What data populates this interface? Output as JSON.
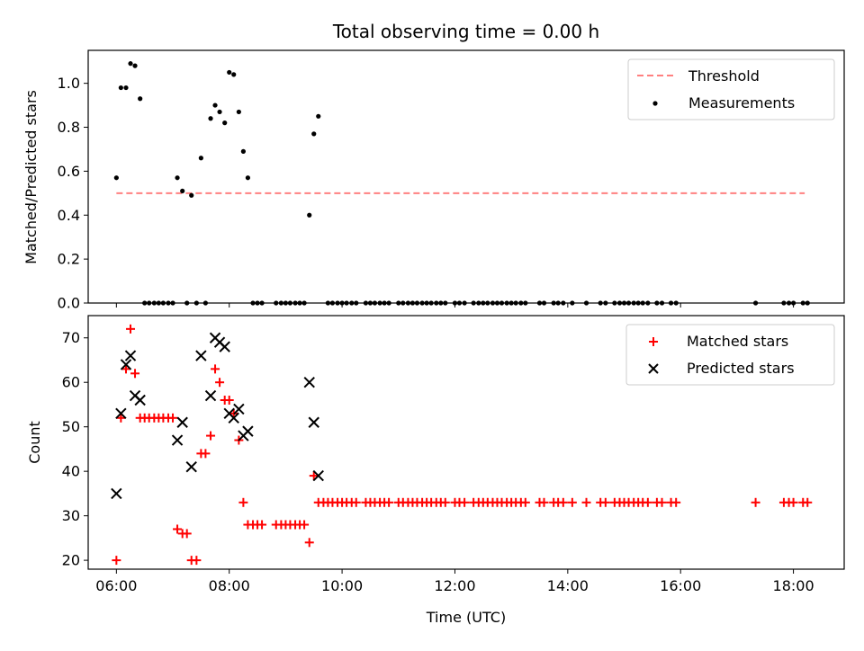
{
  "chart_data": [
    {
      "type": "scatter",
      "title": "Total observing time = 0.00 h",
      "xlabel": "",
      "ylabel": "Matched/Predicted stars",
      "xlim": [
        5.5,
        18.9
      ],
      "ylim": [
        0,
        1.15
      ],
      "yticks": [
        0.0,
        0.2,
        0.4,
        0.6,
        0.8,
        1.0
      ],
      "ytick_labels": [
        "0.0",
        "0.2",
        "0.4",
        "0.6",
        "0.8",
        "1.0"
      ],
      "legend_position": "upper right",
      "threshold": {
        "name": "Threshold",
        "value": 0.5,
        "x_range": [
          6.0,
          18.2
        ],
        "color": "#ff8080",
        "style": "dashed"
      },
      "series": [
        {
          "name": "Measurements",
          "color": "#000000",
          "marker": "dot",
          "x": [
            6.0,
            6.08,
            6.17,
            6.25,
            6.33,
            6.42,
            7.08,
            7.17,
            7.33,
            7.5,
            7.67,
            7.75,
            7.83,
            7.92,
            8.0,
            8.08,
            8.17,
            8.25,
            8.33,
            9.42,
            9.5,
            9.58
          ],
          "y": [
            0.57,
            0.98,
            0.98,
            1.09,
            1.08,
            0.93,
            0.57,
            0.51,
            0.49,
            0.66,
            0.84,
            0.9,
            0.87,
            0.82,
            1.05,
            1.04,
            0.87,
            0.69,
            0.57,
            0.4,
            0.77,
            0.85
          ]
        },
        {
          "name": "",
          "color": "#000000",
          "marker": "dot",
          "x": [
            6.5,
            6.58,
            6.67,
            6.75,
            6.83,
            6.92,
            7.0,
            7.25,
            7.42,
            7.58,
            8.42,
            8.5,
            8.58,
            8.83,
            8.92,
            9.0,
            9.08,
            9.17,
            9.25,
            9.33,
            9.75,
            9.83,
            9.92,
            10.0,
            10.08,
            10.17,
            10.25,
            10.42,
            10.5,
            10.58,
            10.67,
            10.75,
            10.83,
            11.0,
            11.08,
            11.17,
            11.25,
            11.33,
            11.42,
            11.5,
            11.58,
            11.67,
            11.75,
            11.83,
            12.0,
            12.08,
            12.17,
            12.33,
            12.42,
            12.5,
            12.58,
            12.67,
            12.75,
            12.83,
            12.92,
            13.0,
            13.08,
            13.17,
            13.25,
            13.5,
            13.58,
            13.75,
            13.83,
            13.92,
            14.08,
            14.33,
            14.58,
            14.67,
            14.83,
            14.92,
            15.0,
            15.08,
            15.17,
            15.25,
            15.33,
            15.42,
            15.58,
            15.67,
            15.83,
            15.92,
            17.33,
            17.83,
            17.92,
            18.0,
            18.17,
            18.25
          ],
          "y": [
            0,
            0,
            0,
            0,
            0,
            0,
            0,
            0,
            0,
            0,
            0,
            0,
            0,
            0,
            0,
            0,
            0,
            0,
            0,
            0,
            0,
            0,
            0,
            0,
            0,
            0,
            0,
            0,
            0,
            0,
            0,
            0,
            0,
            0,
            0,
            0,
            0,
            0,
            0,
            0,
            0,
            0,
            0,
            0,
            0,
            0,
            0,
            0,
            0,
            0,
            0,
            0,
            0,
            0,
            0,
            0,
            0,
            0,
            0,
            0,
            0,
            0,
            0,
            0,
            0,
            0,
            0,
            0,
            0,
            0,
            0,
            0,
            0,
            0,
            0,
            0,
            0,
            0,
            0,
            0,
            0,
            0,
            0,
            0,
            0,
            0
          ]
        }
      ]
    },
    {
      "type": "scatter",
      "title": "",
      "xlabel": "Time (UTC)",
      "ylabel": "Count",
      "xlim": [
        5.5,
        18.9
      ],
      "ylim": [
        18,
        75
      ],
      "xticks": [
        6,
        8,
        10,
        12,
        14,
        16,
        18
      ],
      "xtick_labels": [
        "06:00",
        "08:00",
        "10:00",
        "12:00",
        "14:00",
        "16:00",
        "18:00"
      ],
      "yticks": [
        20,
        30,
        40,
        50,
        60,
        70
      ],
      "ytick_labels": [
        "20",
        "30",
        "40",
        "50",
        "60",
        "70"
      ],
      "legend_position": "upper right",
      "series": [
        {
          "name": "Matched stars",
          "color": "#ff0000",
          "marker": "plus",
          "x": [
            6.0,
            6.08,
            6.17,
            6.25,
            6.33,
            6.42,
            6.5,
            6.58,
            6.67,
            6.75,
            6.83,
            6.92,
            7.0,
            7.08,
            7.17,
            7.25,
            7.33,
            7.42,
            7.5,
            7.58,
            7.67,
            7.75,
            7.83,
            7.92,
            8.0,
            8.08,
            8.17,
            8.25,
            8.33,
            8.42,
            8.5,
            8.58,
            8.83,
            8.92,
            9.0,
            9.08,
            9.17,
            9.25,
            9.33,
            9.42,
            9.5,
            9.58,
            9.67,
            9.75,
            9.83,
            9.92,
            10.0,
            10.08,
            10.17,
            10.25,
            10.42,
            10.5,
            10.58,
            10.67,
            10.75,
            10.83,
            11.0,
            11.08,
            11.17,
            11.25,
            11.33,
            11.42,
            11.5,
            11.58,
            11.67,
            11.75,
            11.83,
            12.0,
            12.08,
            12.17,
            12.33,
            12.42,
            12.5,
            12.58,
            12.67,
            12.75,
            12.83,
            12.92,
            13.0,
            13.08,
            13.17,
            13.25,
            13.5,
            13.58,
            13.75,
            13.83,
            13.92,
            14.08,
            14.33,
            14.58,
            14.67,
            14.83,
            14.92,
            15.0,
            15.08,
            15.17,
            15.25,
            15.33,
            15.42,
            15.58,
            15.67,
            15.83,
            15.92,
            17.33,
            17.83,
            17.92,
            18.0,
            18.17,
            18.25
          ],
          "y": [
            20,
            52,
            63,
            72,
            62,
            52,
            52,
            52,
            52,
            52,
            52,
            52,
            52,
            27,
            26,
            26,
            20,
            20,
            44,
            44,
            48,
            63,
            60,
            56,
            56,
            53,
            47,
            33,
            28,
            28,
            28,
            28,
            28,
            28,
            28,
            28,
            28,
            28,
            28,
            24,
            39,
            33,
            33,
            33,
            33,
            33,
            33,
            33,
            33,
            33,
            33,
            33,
            33,
            33,
            33,
            33,
            33,
            33,
            33,
            33,
            33,
            33,
            33,
            33,
            33,
            33,
            33,
            33,
            33,
            33,
            33,
            33,
            33,
            33,
            33,
            33,
            33,
            33,
            33,
            33,
            33,
            33,
            33,
            33,
            33,
            33,
            33,
            33,
            33,
            33,
            33,
            33,
            33,
            33,
            33,
            33,
            33,
            33,
            33,
            33,
            33,
            33,
            33,
            33,
            33,
            33,
            33,
            33,
            33
          ]
        },
        {
          "name": "Predicted stars",
          "color": "#000000",
          "marker": "x",
          "x": [
            6.0,
            6.08,
            6.17,
            6.25,
            6.33,
            6.42,
            7.08,
            7.17,
            7.33,
            7.5,
            7.67,
            7.75,
            7.83,
            7.92,
            8.0,
            8.08,
            8.17,
            8.25,
            8.33,
            9.42,
            9.5,
            9.58
          ],
          "y": [
            35,
            53,
            64,
            66,
            57,
            56,
            47,
            51,
            41,
            66,
            57,
            70,
            69,
            68,
            53,
            52,
            54,
            48,
            49,
            60,
            51,
            39
          ]
        }
      ]
    }
  ]
}
